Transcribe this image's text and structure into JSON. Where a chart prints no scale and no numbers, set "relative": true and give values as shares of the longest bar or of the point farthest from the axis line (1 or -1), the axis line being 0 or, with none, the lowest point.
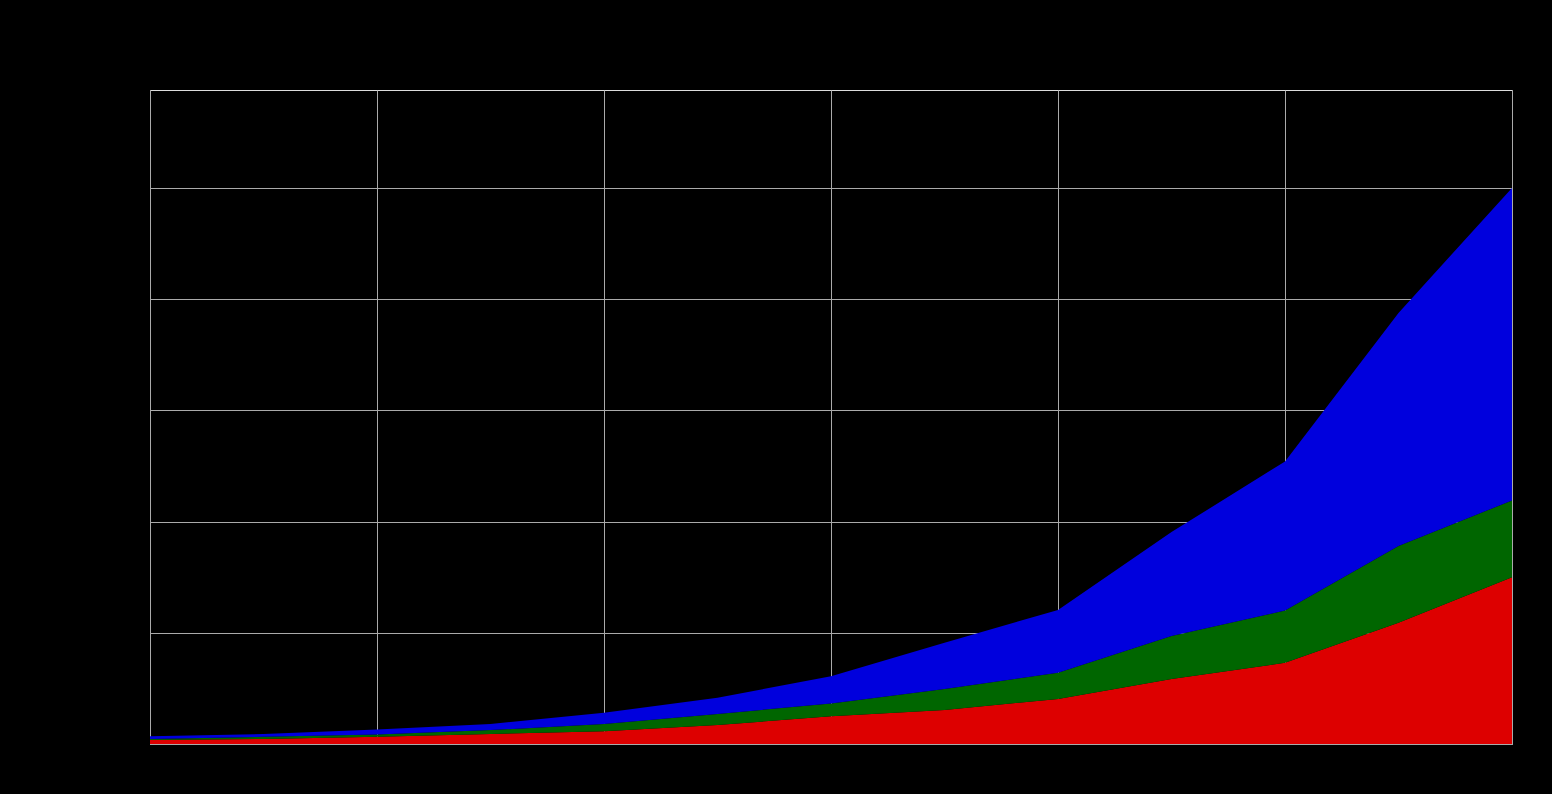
{
  "chart_data": {
    "type": "area",
    "stacked": true,
    "relative": true,
    "grid": true,
    "categories": [
      null,
      null,
      null,
      null,
      null,
      null,
      null,
      null,
      null,
      null,
      null,
      null,
      null
    ],
    "series": [
      {
        "color": "#dd0000",
        "values": [
          0.007,
          0.009,
          0.013,
          0.018,
          0.023,
          0.034,
          0.05,
          0.061,
          0.081,
          0.117,
          0.146,
          0.218,
          0.3
        ]
      },
      {
        "color": "#006600",
        "values": [
          0.002,
          0.004,
          0.004,
          0.007,
          0.013,
          0.02,
          0.023,
          0.038,
          0.047,
          0.077,
          0.094,
          0.138,
          0.138
        ]
      },
      {
        "color": "#0000dd",
        "values": [
          0.005,
          0.005,
          0.009,
          0.011,
          0.02,
          0.029,
          0.049,
          0.083,
          0.113,
          0.187,
          0.268,
          0.419,
          0.562
        ]
      }
    ]
  }
}
